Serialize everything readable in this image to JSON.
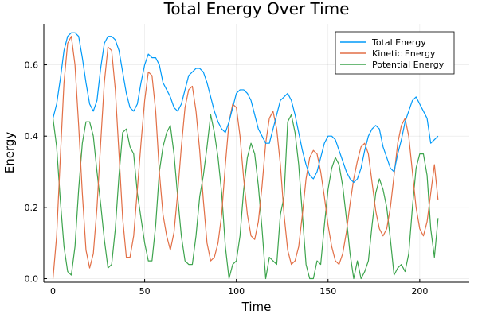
{
  "chart_data": {
    "type": "line",
    "title": "Total Energy Over Time",
    "xlabel": "Time",
    "ylabel": "Energy",
    "xlim": [
      -5,
      227
    ],
    "ylim": [
      -0.01,
      0.715
    ],
    "xticks": [
      0,
      50,
      100,
      150,
      200
    ],
    "yticks": [
      0.0,
      0.2,
      0.4,
      0.6
    ],
    "ytick_labels": [
      "0.0",
      "0.2",
      "0.4",
      "0.6"
    ],
    "grid": true,
    "legend_position": "top-right",
    "x_step": 2,
    "series": [
      {
        "name": "Total Energy",
        "color": "#009af9",
        "values": [
          0.45,
          0.49,
          0.56,
          0.64,
          0.68,
          0.69,
          0.69,
          0.68,
          0.62,
          0.55,
          0.49,
          0.47,
          0.5,
          0.59,
          0.66,
          0.68,
          0.68,
          0.67,
          0.64,
          0.58,
          0.52,
          0.48,
          0.47,
          0.49,
          0.55,
          0.6,
          0.63,
          0.62,
          0.62,
          0.6,
          0.55,
          0.53,
          0.51,
          0.48,
          0.47,
          0.49,
          0.53,
          0.57,
          0.58,
          0.59,
          0.59,
          0.58,
          0.55,
          0.51,
          0.47,
          0.44,
          0.42,
          0.41,
          0.44,
          0.48,
          0.52,
          0.53,
          0.53,
          0.52,
          0.5,
          0.46,
          0.42,
          0.4,
          0.38,
          0.38,
          0.42,
          0.46,
          0.5,
          0.51,
          0.52,
          0.5,
          0.46,
          0.41,
          0.36,
          0.32,
          0.29,
          0.28,
          0.3,
          0.34,
          0.38,
          0.4,
          0.4,
          0.39,
          0.36,
          0.33,
          0.3,
          0.28,
          0.27,
          0.28,
          0.31,
          0.36,
          0.4,
          0.42,
          0.43,
          0.42,
          0.37,
          0.34,
          0.31,
          0.3,
          0.35,
          0.39,
          0.44,
          0.47,
          0.5,
          0.51,
          0.49,
          0.47,
          0.45,
          0.38,
          0.39,
          0.4
        ]
      },
      {
        "name": "Kinetic Energy",
        "color": "#e26f46",
        "values": [
          0.0,
          0.12,
          0.34,
          0.55,
          0.66,
          0.68,
          0.6,
          0.43,
          0.24,
          0.08,
          0.03,
          0.07,
          0.2,
          0.38,
          0.55,
          0.65,
          0.64,
          0.53,
          0.35,
          0.17,
          0.06,
          0.06,
          0.12,
          0.25,
          0.38,
          0.5,
          0.58,
          0.57,
          0.47,
          0.3,
          0.18,
          0.12,
          0.08,
          0.13,
          0.24,
          0.37,
          0.48,
          0.53,
          0.54,
          0.47,
          0.36,
          0.22,
          0.1,
          0.05,
          0.06,
          0.1,
          0.18,
          0.32,
          0.44,
          0.49,
          0.48,
          0.4,
          0.28,
          0.18,
          0.12,
          0.11,
          0.16,
          0.26,
          0.38,
          0.45,
          0.47,
          0.42,
          0.32,
          0.18,
          0.08,
          0.04,
          0.05,
          0.09,
          0.18,
          0.28,
          0.34,
          0.36,
          0.35,
          0.3,
          0.23,
          0.15,
          0.09,
          0.05,
          0.04,
          0.07,
          0.13,
          0.21,
          0.28,
          0.33,
          0.37,
          0.38,
          0.35,
          0.27,
          0.19,
          0.14,
          0.12,
          0.14,
          0.2,
          0.29,
          0.38,
          0.43,
          0.45,
          0.4,
          0.3,
          0.2,
          0.14,
          0.12,
          0.16,
          0.24,
          0.32,
          0.22
        ]
      },
      {
        "name": "Potential Energy",
        "color": "#3da44d",
        "values": [
          0.45,
          0.37,
          0.22,
          0.09,
          0.02,
          0.01,
          0.09,
          0.25,
          0.38,
          0.44,
          0.44,
          0.4,
          0.3,
          0.21,
          0.11,
          0.03,
          0.04,
          0.14,
          0.29,
          0.41,
          0.42,
          0.37,
          0.35,
          0.24,
          0.17,
          0.1,
          0.05,
          0.05,
          0.15,
          0.3,
          0.37,
          0.41,
          0.43,
          0.35,
          0.23,
          0.12,
          0.05,
          0.04,
          0.04,
          0.12,
          0.23,
          0.29,
          0.37,
          0.46,
          0.41,
          0.34,
          0.24,
          0.09,
          0.0,
          0.04,
          0.05,
          0.12,
          0.25,
          0.34,
          0.38,
          0.35,
          0.26,
          0.14,
          0.0,
          0.06,
          0.05,
          0.04,
          0.18,
          0.23,
          0.44,
          0.46,
          0.41,
          0.32,
          0.18,
          0.04,
          0.0,
          0.0,
          0.05,
          0.04,
          0.15,
          0.25,
          0.31,
          0.34,
          0.32,
          0.26,
          0.17,
          0.07,
          0.0,
          0.05,
          0.0,
          0.02,
          0.05,
          0.15,
          0.24,
          0.28,
          0.25,
          0.2,
          0.11,
          0.01,
          0.03,
          0.04,
          0.02,
          0.07,
          0.2,
          0.31,
          0.35,
          0.35,
          0.29,
          0.14,
          0.06,
          0.17
        ]
      }
    ]
  }
}
